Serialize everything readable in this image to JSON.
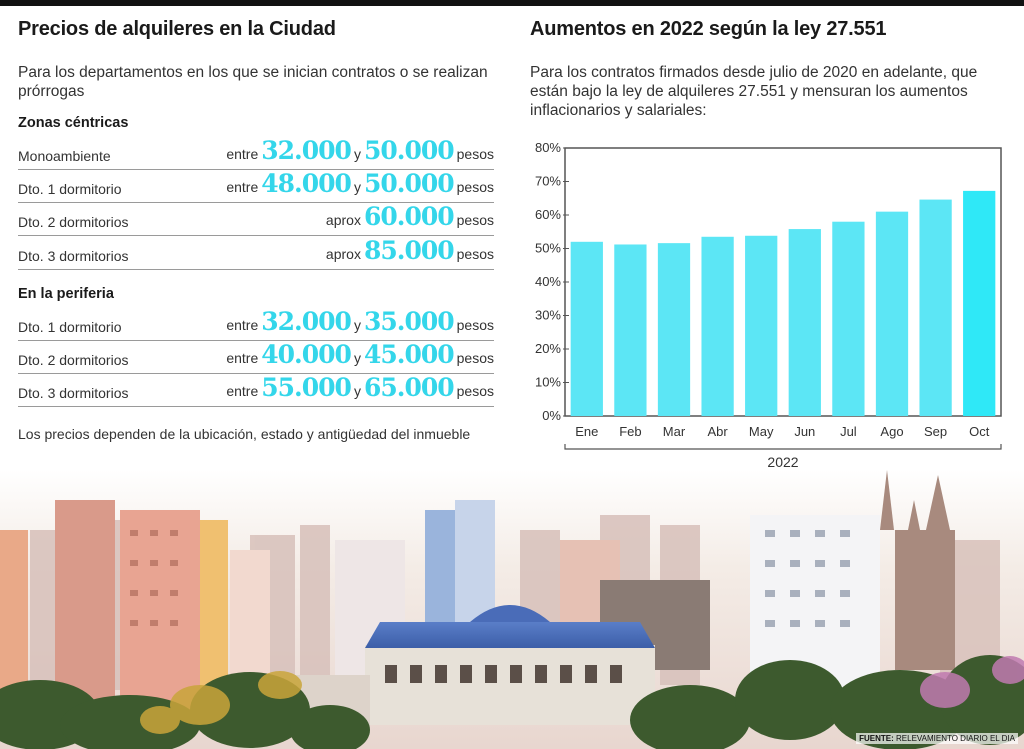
{
  "left": {
    "title": "Precios de alquileres en la Ciudad",
    "intro": "Para los departamentos en los que se inician contratos o se realizan prórrogas",
    "sections": [
      {
        "title": "Zonas céntricas",
        "rows": [
          {
            "label": "Monoambiente",
            "pre": "entre",
            "v1": "32.000",
            "mid": "y",
            "v2": "50.000",
            "unit": "pesos"
          },
          {
            "label": "Dto. 1 dormitorio",
            "pre": "entre",
            "v1": "48.000",
            "mid": "y",
            "v2": "50.000",
            "unit": "pesos"
          },
          {
            "label": "Dto. 2 dormitorios",
            "pre": "aprox",
            "v1": "60.000",
            "unit": "pesos"
          },
          {
            "label": "Dto. 3 dormitorios",
            "pre": "aprox",
            "v1": "85.000",
            "unit": "pesos"
          }
        ]
      },
      {
        "title": "En la periferia",
        "rows": [
          {
            "label": "Dto. 1 dormitorio",
            "pre": "entre",
            "v1": "32.000",
            "mid": "y",
            "v2": "35.000",
            "unit": "pesos"
          },
          {
            "label": "Dto. 2 dormitorios",
            "pre": "entre",
            "v1": "40.000",
            "mid": "y",
            "v2": "45.000",
            "unit": "pesos"
          },
          {
            "label": "Dto. 3 dormitorios",
            "pre": "entre",
            "v1": "55.000",
            "mid": "y",
            "v2": "65.000",
            "unit": "pesos"
          }
        ]
      }
    ],
    "note": "Los precios dependen de la ubicación, estado y antigüedad del inmueble"
  },
  "right": {
    "title": "Aumentos en 2022 según la ley 27.551",
    "intro": "Para los contratos firmados desde julio de 2020 en adelante, que están bajo la ley de alquileres 27.551 y mensuran los aumentos inflacionarios y salariales:"
  },
  "chart_data": {
    "type": "bar",
    "categories": [
      "Ene",
      "Feb",
      "Mar",
      "Abr",
      "May",
      "Jun",
      "Jul",
      "Ago",
      "Sep",
      "Oct"
    ],
    "values": [
      52.0,
      51.2,
      51.6,
      53.5,
      53.8,
      55.8,
      58.0,
      61.0,
      64.6,
      67.2
    ],
    "ylim": [
      0,
      80
    ],
    "yticks": [
      "0%",
      "10%",
      "20%",
      "30%",
      "40%",
      "50%",
      "60%",
      "70%",
      "80%"
    ],
    "xlabel": "2022",
    "bar_color": "#5ce6f5",
    "last_bar_color": "#2fe8f7"
  },
  "footer": {
    "source_label": "FUENTE:",
    "source_text": "RELEVAMIENTO DIARIO EL DIA"
  }
}
